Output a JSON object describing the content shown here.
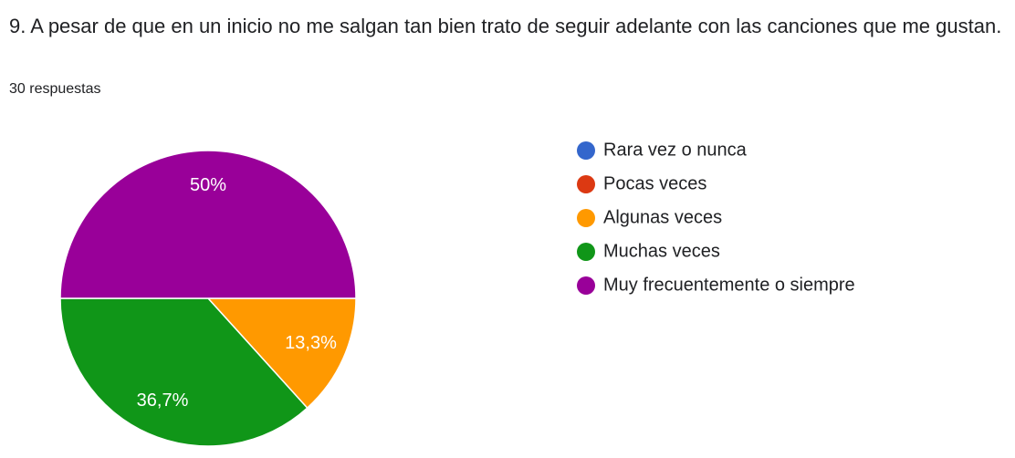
{
  "chart_data": {
    "type": "pie",
    "title": "9. A pesar de que en un inicio no me salgan tan bien trato de seguir adelante con las canciones que me gustan.",
    "subtitle": "30 respuestas",
    "categories": [
      "Rara vez o nunca",
      "Pocas veces",
      "Algunas veces",
      "Muchas veces",
      "Muy frecuentemente o siempre"
    ],
    "values": [
      0,
      0,
      13.3,
      36.7,
      50
    ],
    "value_labels": [
      null,
      null,
      "13,3%",
      "36,7%",
      "50%"
    ],
    "colors": [
      "#3366cc",
      "#dc3912",
      "#ff9900",
      "#109618",
      "#990099"
    ],
    "legend": "right"
  }
}
